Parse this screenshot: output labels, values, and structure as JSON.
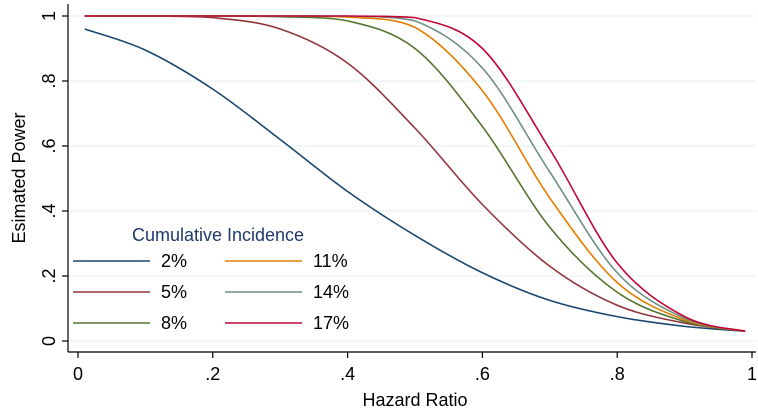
{
  "chart_data": {
    "type": "line",
    "xlabel": "Hazard Ratio",
    "ylabel": "Esimated Power",
    "xlim": [
      0,
      1
    ],
    "ylim": [
      0,
      1
    ],
    "x_ticks": [
      {
        "value": 0,
        "label": "0"
      },
      {
        "value": 0.2,
        "label": ".2"
      },
      {
        "value": 0.4,
        "label": ".4"
      },
      {
        "value": 0.6,
        "label": ".6"
      },
      {
        "value": 0.8,
        "label": ".8"
      },
      {
        "value": 1,
        "label": "1"
      }
    ],
    "y_ticks": [
      {
        "value": 0,
        "label": "0"
      },
      {
        "value": 0.2,
        "label": ".2"
      },
      {
        "value": 0.4,
        "label": ".4"
      },
      {
        "value": 0.6,
        "label": ".6"
      },
      {
        "value": 0.8,
        "label": ".8"
      },
      {
        "value": 1,
        "label": "1"
      }
    ],
    "grid": "horizontal",
    "legend": {
      "title": "Cumulative Incidence",
      "placement": "bottom-left"
    },
    "x": [
      0.01,
      0.1,
      0.2,
      0.3,
      0.4,
      0.5,
      0.6,
      0.7,
      0.8,
      0.9,
      0.99
    ],
    "series": [
      {
        "name": "2%",
        "color": "#1a476f",
        "values": [
          0.96,
          0.895,
          0.775,
          0.62,
          0.46,
          0.325,
          0.21,
          0.125,
          0.075,
          0.045,
          0.03
        ]
      },
      {
        "name": "5%",
        "color": "#90353b",
        "values": [
          1.0,
          1.0,
          0.995,
          0.96,
          0.855,
          0.655,
          0.42,
          0.23,
          0.11,
          0.055,
          0.03
        ]
      },
      {
        "name": "8%",
        "color": "#55752f",
        "values": [
          1.0,
          1.0,
          1.0,
          0.998,
          0.985,
          0.9,
          0.66,
          0.35,
          0.15,
          0.06,
          0.03
        ]
      },
      {
        "name": "11%",
        "color": "#e37e00",
        "values": [
          1.0,
          1.0,
          1.0,
          1.0,
          0.997,
          0.965,
          0.77,
          0.44,
          0.18,
          0.065,
          0.03
        ]
      },
      {
        "name": "14%",
        "color": "#6e8e84",
        "values": [
          1.0,
          1.0,
          1.0,
          1.0,
          1.0,
          0.985,
          0.84,
          0.52,
          0.21,
          0.07,
          0.03
        ]
      },
      {
        "name": "17%",
        "color": "#c10534",
        "values": [
          1.0,
          1.0,
          1.0,
          1.0,
          1.0,
          0.995,
          0.9,
          0.59,
          0.24,
          0.075,
          0.03
        ]
      }
    ]
  }
}
